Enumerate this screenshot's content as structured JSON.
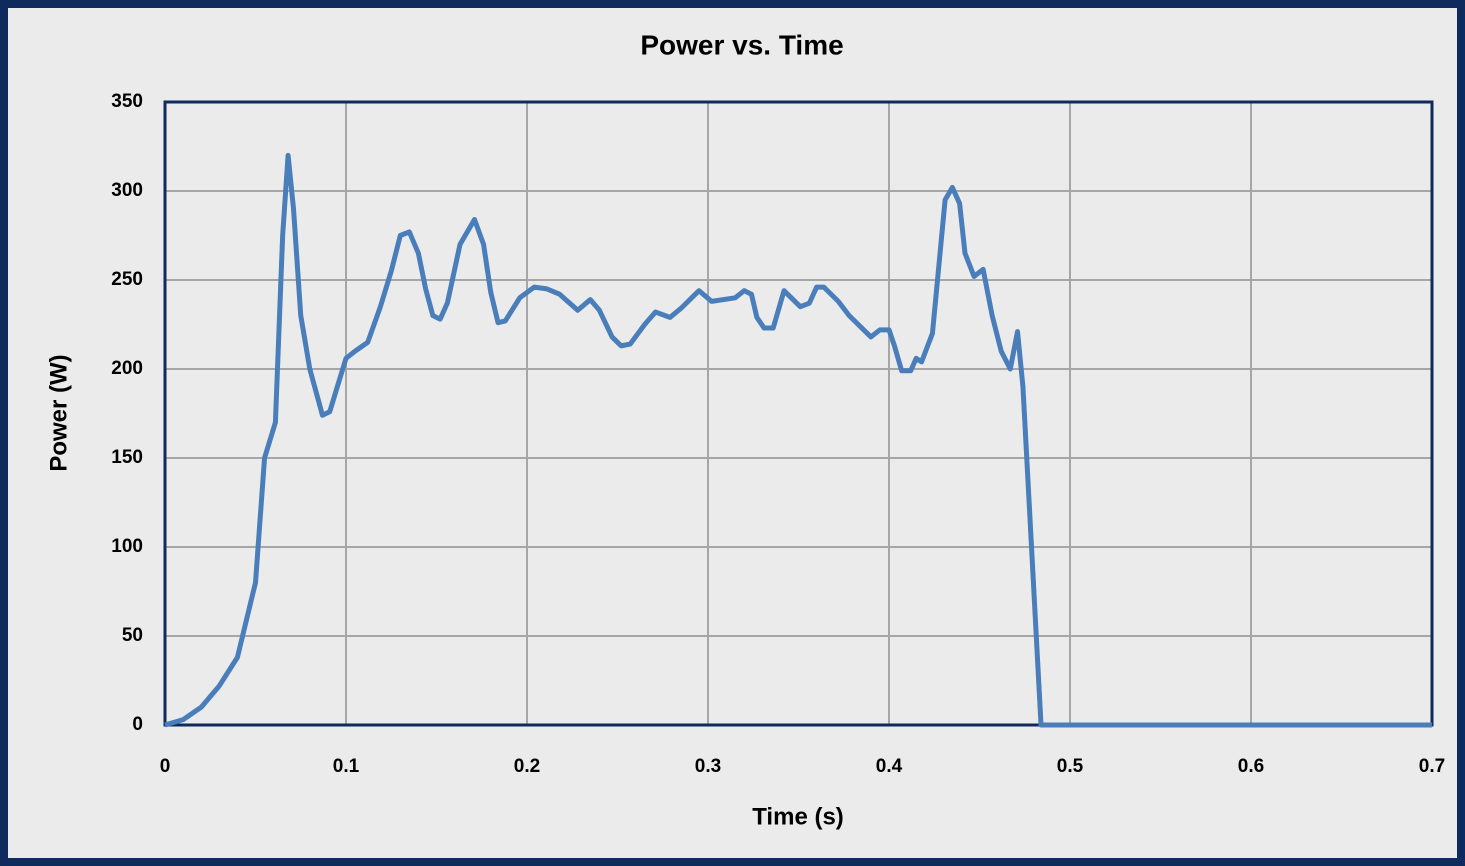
{
  "chart_data": {
    "type": "line",
    "title": "Power vs. Time",
    "x_label": "Time (s)",
    "y_label": "Power (W)",
    "x": [
      0,
      0.01,
      0.02,
      0.03,
      0.04,
      0.05,
      0.055,
      0.061,
      0.065,
      0.068,
      0.071,
      0.075,
      0.08,
      0.087,
      0.091,
      0.1,
      0.105,
      0.112,
      0.119,
      0.125,
      0.13,
      0.135,
      0.14,
      0.144,
      0.148,
      0.152,
      0.156,
      0.163,
      0.171,
      0.176,
      0.18,
      0.184,
      0.188,
      0.196,
      0.204,
      0.211,
      0.218,
      0.228,
      0.235,
      0.24,
      0.247,
      0.252,
      0.257,
      0.265,
      0.271,
      0.279,
      0.285,
      0.295,
      0.302,
      0.315,
      0.32,
      0.324,
      0.327,
      0.331,
      0.336,
      0.342,
      0.351,
      0.356,
      0.36,
      0.364,
      0.372,
      0.378,
      0.39,
      0.395,
      0.4,
      0.403,
      0.407,
      0.412,
      0.415,
      0.418,
      0.424,
      0.431,
      0.435,
      0.439,
      0.442,
      0.447,
      0.452,
      0.457,
      0.462,
      0.467,
      0.471,
      0.474,
      0.484,
      0.7
    ],
    "values": [
      0,
      3,
      10,
      22,
      38,
      80,
      150,
      170,
      275,
      320,
      290,
      230,
      200,
      174,
      176,
      206,
      210,
      215,
      235,
      255,
      275,
      277,
      265,
      245,
      230,
      228,
      237,
      270,
      284,
      270,
      243,
      226,
      227,
      240,
      246,
      245,
      242,
      233,
      239,
      233,
      218,
      213,
      214,
      225,
      232,
      229,
      234,
      244,
      238,
      240,
      244,
      242,
      229,
      223,
      223,
      244,
      235,
      237,
      246,
      246,
      238,
      230,
      218,
      222,
      222,
      213,
      199,
      199,
      206,
      204,
      220,
      295,
      302,
      293,
      265,
      252,
      256,
      230,
      210,
      200,
      221,
      190,
      0,
      0
    ],
    "color": "#4a7ebb",
    "xlim": [
      0,
      0.7
    ],
    "xticks": [
      0,
      0.1,
      0.2,
      0.3,
      0.4,
      0.5,
      0.6,
      0.7
    ],
    "ylim": [
      0,
      350
    ],
    "yticks": [
      0,
      50,
      100,
      150,
      200,
      250,
      300,
      350
    ],
    "grid": true
  }
}
